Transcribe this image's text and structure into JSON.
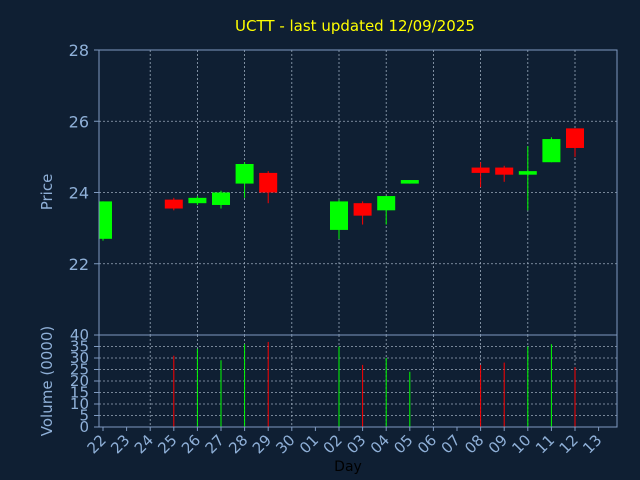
{
  "chart_data": {
    "type": "candlestick",
    "title": "UCTT - last updated 12/09/2025",
    "xlabel": "Day",
    "price_panel": {
      "ylabel": "Price",
      "ylim": [
        20,
        28
      ],
      "yticks": [
        "28",
        "26",
        "24",
        "22"
      ],
      "grid": true
    },
    "volume_panel": {
      "ylabel": "Volume (0000)",
      "ylim": [
        0,
        40
      ],
      "yticks": [
        "40",
        "35",
        "30",
        "25",
        "20",
        "15",
        "10",
        "5",
        "0"
      ],
      "grid": true
    },
    "x_ticks": [
      "22",
      "23",
      "24",
      "25",
      "26",
      "27",
      "28",
      "29",
      "30",
      "01",
      "02",
      "03",
      "04",
      "05",
      "06",
      "07",
      "08",
      "09",
      "10",
      "11",
      "12",
      "13"
    ],
    "candles": [
      {
        "x": "22",
        "open": 22.7,
        "close": 23.75,
        "high": 23.75,
        "low": 22.65,
        "volume": 0
      },
      {
        "x": "25",
        "open": 23.8,
        "close": 23.55,
        "high": 23.85,
        "low": 23.5,
        "volume": 31
      },
      {
        "x": "26",
        "open": 23.7,
        "close": 23.85,
        "high": 23.9,
        "low": 23.65,
        "volume": 34
      },
      {
        "x": "27",
        "open": 23.65,
        "close": 24.0,
        "high": 24.05,
        "low": 23.55,
        "volume": 29
      },
      {
        "x": "28",
        "open": 24.25,
        "close": 24.8,
        "high": 24.85,
        "low": 23.85,
        "volume": 36
      },
      {
        "x": "29",
        "open": 24.55,
        "close": 24.0,
        "high": 24.6,
        "low": 23.7,
        "volume": 37
      },
      {
        "x": "02",
        "open": 22.95,
        "close": 23.75,
        "high": 23.8,
        "low": 22.7,
        "volume": 35
      },
      {
        "x": "03",
        "open": 23.7,
        "close": 23.35,
        "high": 23.75,
        "low": 23.1,
        "volume": 27
      },
      {
        "x": "04",
        "open": 23.5,
        "close": 23.9,
        "high": 23.9,
        "low": 23.1,
        "volume": 30
      },
      {
        "x": "05",
        "open": 24.25,
        "close": 24.35,
        "high": 24.35,
        "low": 24.25,
        "volume": 24
      },
      {
        "x": "08",
        "open": 24.7,
        "close": 24.55,
        "high": 24.85,
        "low": 24.15,
        "volume": 27
      },
      {
        "x": "09",
        "open": 24.7,
        "close": 24.5,
        "high": 24.75,
        "low": 24.3,
        "volume": 28
      },
      {
        "x": "10",
        "open": 24.5,
        "close": 24.6,
        "high": 25.3,
        "low": 23.5,
        "volume": 35
      },
      {
        "x": "11",
        "open": 24.85,
        "close": 25.5,
        "high": 25.55,
        "low": 24.85,
        "volume": 36
      },
      {
        "x": "12",
        "open": 25.8,
        "close": 25.25,
        "high": 25.8,
        "low": 25.0,
        "volume": 26
      }
    ],
    "colors": {
      "background": "#0f1f33",
      "title": "#ffff00",
      "axis_text": "#8fb0d8",
      "axis_line": "#7f9ac0",
      "grid": "#9aa9bb",
      "up": "#00ff00",
      "down": "#ff0000"
    }
  }
}
